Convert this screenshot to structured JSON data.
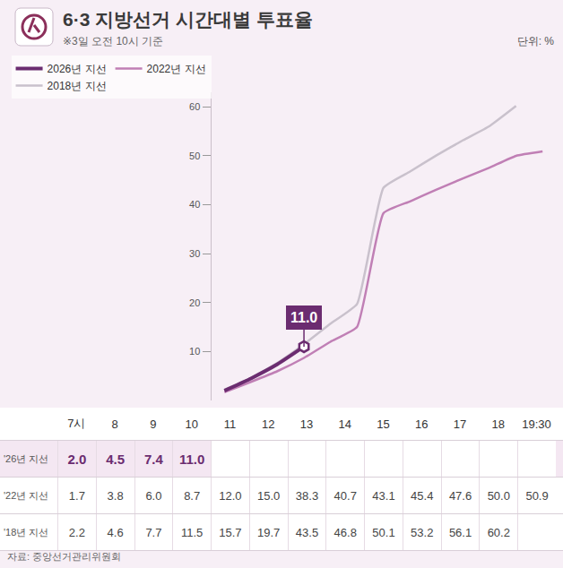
{
  "chart_data": {
    "type": "line",
    "title": "6·3 지방선거 시간대별 투표율",
    "subtitle": "※3일 오전 10시 기준",
    "unit_label": "단위: %",
    "source": "자료: 중앙선거관리위원회",
    "categories": [
      "7시",
      "8",
      "9",
      "10",
      "11",
      "12",
      "13",
      "14",
      "15",
      "16",
      "17",
      "18",
      "19:30"
    ],
    "series": [
      {
        "name": "2026년 지선",
        "table_label": "'26년 지선",
        "color": "#6b2c70",
        "values": [
          2.0,
          4.5,
          7.4,
          11.0,
          null,
          null,
          null,
          null,
          null,
          null,
          null,
          null,
          null
        ],
        "value_labels": [
          "2.0",
          "4.5",
          "7.4",
          "11.0",
          null,
          null,
          null,
          null,
          null,
          null,
          null,
          null,
          null
        ]
      },
      {
        "name": "2022년 지선",
        "table_label": "'22년 지선",
        "color": "#c07fb5",
        "values": [
          1.7,
          3.8,
          6.0,
          8.7,
          12.0,
          15.0,
          38.3,
          40.7,
          43.1,
          45.4,
          47.6,
          50.0,
          50.9
        ],
        "value_labels": [
          "1.7",
          "3.8",
          "6.0",
          "8.7",
          "12.0",
          "15.0",
          "38.3",
          "40.7",
          "43.1",
          "45.4",
          "47.6",
          "50.0",
          "50.9"
        ]
      },
      {
        "name": "2018년 지선",
        "table_label": "'18년 지선",
        "color": "#c9c1cc",
        "values": [
          2.2,
          4.6,
          7.7,
          11.5,
          15.7,
          19.7,
          43.5,
          46.8,
          50.1,
          53.2,
          56.1,
          60.2,
          null
        ],
        "value_labels": [
          "2.2",
          "4.6",
          "7.7",
          "11.5",
          "15.7",
          "19.7",
          "43.5",
          "46.8",
          "50.1",
          "53.2",
          "56.1",
          "60.2",
          null
        ]
      }
    ],
    "ylim": [
      0,
      63
    ],
    "yticks": [
      10,
      20,
      30,
      40,
      50,
      60
    ],
    "grid": false,
    "legend": "top-left",
    "annotations": [
      {
        "x": "10",
        "y": 11.0,
        "text": "11.0"
      }
    ]
  }
}
